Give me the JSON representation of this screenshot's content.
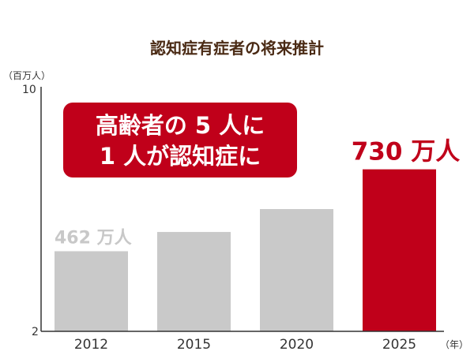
{
  "chart_data": {
    "type": "bar",
    "title": "認知症有症者の将来推計",
    "ylabel": "（百万人）",
    "xlabel": "（年）",
    "ylim": [
      2,
      10
    ],
    "yticks": [
      "10",
      "2"
    ],
    "categories": [
      "2012",
      "2015",
      "2020",
      "2025"
    ],
    "values": [
      4.62,
      5.25,
      6.0,
      7.3
    ],
    "data_labels": [
      "462 万人",
      "",
      "",
      "730 万人"
    ],
    "callout": [
      "高齢者の 5 人に",
      "1 人が認知症に"
    ],
    "colors": {
      "bar": "#c9c9c9",
      "highlight_bar": "#c0001a",
      "callout_bg": "#c0001a",
      "axis": "#333333",
      "title": "#4a2a14"
    }
  }
}
